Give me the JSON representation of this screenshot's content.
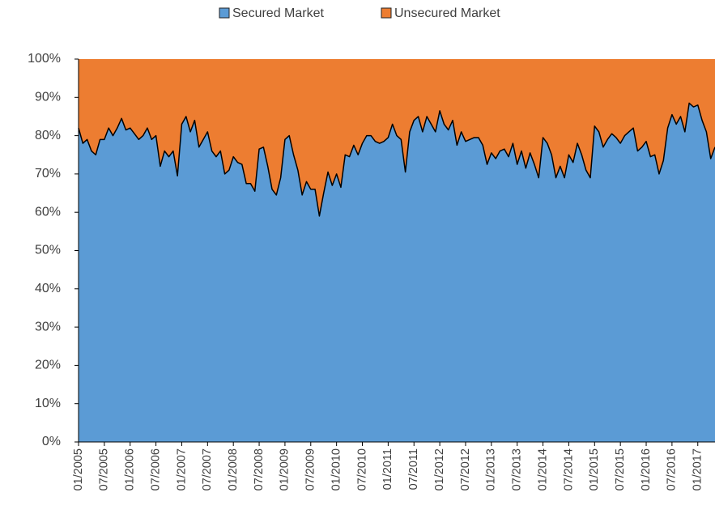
{
  "chart_data": {
    "type": "stacked_area",
    "categories": [
      "01/2005",
      null,
      null,
      null,
      null,
      null,
      "07/2005",
      null,
      null,
      null,
      null,
      null,
      "01/2006",
      null,
      null,
      null,
      null,
      null,
      "07/2006",
      null,
      null,
      null,
      null,
      null,
      "01/2007",
      null,
      null,
      null,
      null,
      null,
      "07/2007",
      null,
      null,
      null,
      null,
      null,
      "01/2008",
      null,
      null,
      null,
      null,
      null,
      "07/2008",
      null,
      null,
      null,
      null,
      null,
      "01/2009",
      null,
      null,
      null,
      null,
      null,
      "07/2009",
      null,
      null,
      null,
      null,
      null,
      "01/2010",
      null,
      null,
      null,
      null,
      null,
      "07/2010",
      null,
      null,
      null,
      null,
      null,
      "01/2011",
      null,
      null,
      null,
      null,
      null,
      "07/2011",
      null,
      null,
      null,
      null,
      null,
      "01/2012",
      null,
      null,
      null,
      null,
      null,
      "07/2012",
      null,
      null,
      null,
      null,
      null,
      "01/2013",
      null,
      null,
      null,
      null,
      null,
      "07/2013",
      null,
      null,
      null,
      null,
      null,
      "01/2014",
      null,
      null,
      null,
      null,
      null,
      "07/2014",
      null,
      null,
      null,
      null,
      null,
      "01/2015",
      null,
      null,
      null,
      null,
      null,
      "07/2015",
      null,
      null,
      null,
      null,
      null,
      "01/2016",
      null,
      null,
      null,
      null,
      null,
      "07/2016",
      null,
      null,
      null,
      null,
      null,
      "01/2017",
      null,
      null,
      null,
      null
    ],
    "series": [
      {
        "name": "Secured Market",
        "color": "#5b9bd5",
        "values": [
          82,
          78,
          79,
          76,
          75,
          79,
          79,
          82,
          80,
          82,
          84.5,
          81.5,
          82,
          80.5,
          79,
          80,
          82,
          79,
          80,
          72,
          76,
          74.5,
          76,
          69.5,
          83,
          85,
          81,
          84,
          77,
          79,
          81,
          76,
          74.5,
          76,
          70,
          71,
          74.5,
          73,
          72.5,
          67.5,
          67.5,
          65.5,
          76.5,
          77,
          72,
          66,
          64.5,
          69,
          79,
          80,
          75,
          71,
          64.5,
          68,
          66,
          66,
          59,
          65,
          70.5,
          67,
          70,
          66.5,
          75,
          74.5,
          77.5,
          75,
          78,
          80,
          80,
          78.5,
          78,
          78.5,
          79.5,
          83,
          80,
          79,
          70.5,
          81,
          84,
          85,
          81,
          85,
          83,
          81,
          86.5,
          83,
          81.5,
          84,
          77.5,
          81,
          78.5,
          79,
          79.5,
          79.5,
          77.5,
          72.5,
          75.5,
          74,
          76,
          76.5,
          74.5,
          78,
          72.5,
          76,
          71.5,
          75.5,
          72.5,
          69,
          79.5,
          78,
          75,
          69,
          72,
          69,
          75,
          73,
          78,
          75,
          71,
          69,
          82.5,
          81,
          77,
          79,
          80.5,
          79.5,
          78,
          80,
          81,
          82,
          76,
          77,
          78.5,
          74.5,
          75,
          70,
          73.5,
          82,
          85.5,
          83,
          85,
          81,
          88.5,
          87.5,
          88,
          84,
          81,
          74,
          77
        ]
      },
      {
        "name": "Unsecured Market",
        "color": "#ed7d31",
        "values": [
          18,
          22,
          21,
          24,
          25,
          21,
          21,
          18,
          20,
          18,
          15.5,
          18.5,
          18,
          19.5,
          21,
          20,
          18,
          21,
          20,
          28,
          24,
          25.5,
          24,
          30.5,
          17,
          15,
          19,
          16,
          23,
          21,
          19,
          24,
          25.5,
          24,
          30,
          29,
          25.5,
          27,
          27.5,
          32.5,
          32.5,
          34.5,
          23.5,
          23,
          28,
          34,
          35.5,
          31,
          21,
          20,
          25,
          29,
          35.5,
          32,
          34,
          34,
          41,
          35,
          29.5,
          33,
          30,
          33.5,
          25,
          25.5,
          22.5,
          25,
          22,
          20,
          20,
          21.5,
          22,
          21.5,
          20.5,
          17,
          20,
          21,
          29.5,
          19,
          16,
          15,
          19,
          15,
          17,
          19,
          13.5,
          17,
          18.5,
          16,
          22.5,
          19,
          21.5,
          21,
          20.5,
          20.5,
          22.5,
          27.5,
          24.5,
          26,
          24,
          23.5,
          25.5,
          22,
          27.5,
          24,
          28.5,
          24.5,
          27.5,
          31,
          20.5,
          22,
          25,
          31,
          28,
          31,
          25,
          27,
          22,
          25,
          29,
          31,
          17.5,
          19,
          23,
          21,
          19.5,
          20.5,
          22,
          20,
          19,
          18,
          24,
          23,
          21.5,
          25.5,
          25,
          30,
          26.5,
          18,
          14.5,
          17,
          15,
          19,
          11.5,
          12.5,
          12,
          16,
          19,
          26,
          23
        ]
      }
    ],
    "ylim": [
      0,
      100
    ],
    "yticks": [
      {
        "value": 0,
        "label": "0%"
      },
      {
        "value": 10,
        "label": "10%"
      },
      {
        "value": 20,
        "label": "20%"
      },
      {
        "value": 30,
        "label": "30%"
      },
      {
        "value": 40,
        "label": "40%"
      },
      {
        "value": 50,
        "label": "50%"
      },
      {
        "value": 60,
        "label": "60%"
      },
      {
        "value": 70,
        "label": "70%"
      },
      {
        "value": 80,
        "label": "80%"
      },
      {
        "value": 90,
        "label": "90%"
      },
      {
        "value": 100,
        "label": "100%"
      }
    ],
    "legend": "top"
  }
}
